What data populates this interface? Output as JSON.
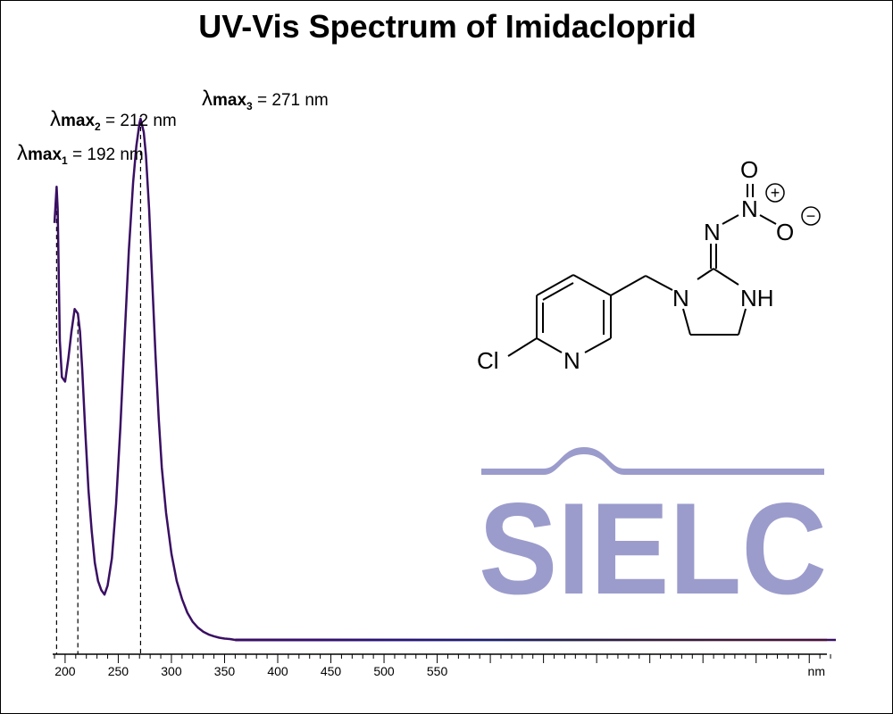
{
  "chart_data": {
    "type": "line",
    "title": "UV-Vis Spectrum of Imidacloprid",
    "xlabel": "nm",
    "ylabel": "",
    "xlim": [
      190,
      925
    ],
    "grid": false,
    "x_ticks": [
      200,
      250,
      300,
      350,
      400,
      450,
      500,
      550
    ],
    "series": [
      {
        "color": "#3a0f63",
        "x": [
          190,
          192,
          193,
          195,
          197,
          200,
          203,
          206,
          209,
          212,
          214,
          216,
          219,
          222,
          225,
          228,
          231,
          234,
          237,
          240,
          244,
          248,
          252,
          256,
          260,
          264,
          267,
          270,
          271,
          272,
          274,
          276,
          279,
          282,
          285,
          288,
          291,
          295,
          300,
          305,
          310,
          315,
          320,
          325,
          330,
          335,
          340,
          345,
          350,
          355,
          360,
          370,
          380,
          400,
          450,
          500,
          550,
          600,
          650,
          700,
          750,
          800,
          850,
          900,
          925
        ],
        "y": [
          0.92,
          1.0,
          0.95,
          0.66,
          0.58,
          0.57,
          0.62,
          0.68,
          0.73,
          0.72,
          0.68,
          0.6,
          0.46,
          0.33,
          0.24,
          0.17,
          0.13,
          0.11,
          0.1,
          0.12,
          0.18,
          0.3,
          0.47,
          0.67,
          0.86,
          1.01,
          1.09,
          1.14,
          1.15,
          1.14,
          1.12,
          1.07,
          0.95,
          0.79,
          0.63,
          0.49,
          0.38,
          0.28,
          0.19,
          0.13,
          0.09,
          0.06,
          0.04,
          0.027,
          0.018,
          0.012,
          0.008,
          0.005,
          0.003,
          0.002,
          0.0,
          0.0,
          0.0,
          0.0,
          0.0,
          0.0,
          0.0,
          0.0,
          0.0,
          0.0,
          0.0,
          0.0,
          0.0,
          0.0,
          0.0
        ]
      }
    ],
    "peaks": [
      {
        "x": 192,
        "sub": "1",
        "value_text": " = 192 nm"
      },
      {
        "x": 212,
        "sub": "2",
        "value_text": " = 212 nm"
      },
      {
        "x": 271,
        "sub": "3",
        "value_text": " = 271 nm"
      }
    ],
    "peak_symbol": "λ",
    "peak_label": "max",
    "spectrum_colors": [
      "#3a0f63",
      "#1a1aa8",
      "#0070ff",
      "#00d4e8",
      "#18c818",
      "#a0e000",
      "#f0e800",
      "#ffa000"
    ]
  },
  "molecule": {
    "atoms": {
      "o_top": "O",
      "n_nitro": "N",
      "o_minus": "O",
      "n_imine": "N",
      "n_ring": "N",
      "nh": "NH",
      "n_pyridine": "N",
      "cl": "Cl"
    },
    "charges": {
      "plus": "+",
      "minus": "−"
    }
  },
  "logo": {
    "text": "SIELC",
    "color": "#9b9ccc"
  }
}
